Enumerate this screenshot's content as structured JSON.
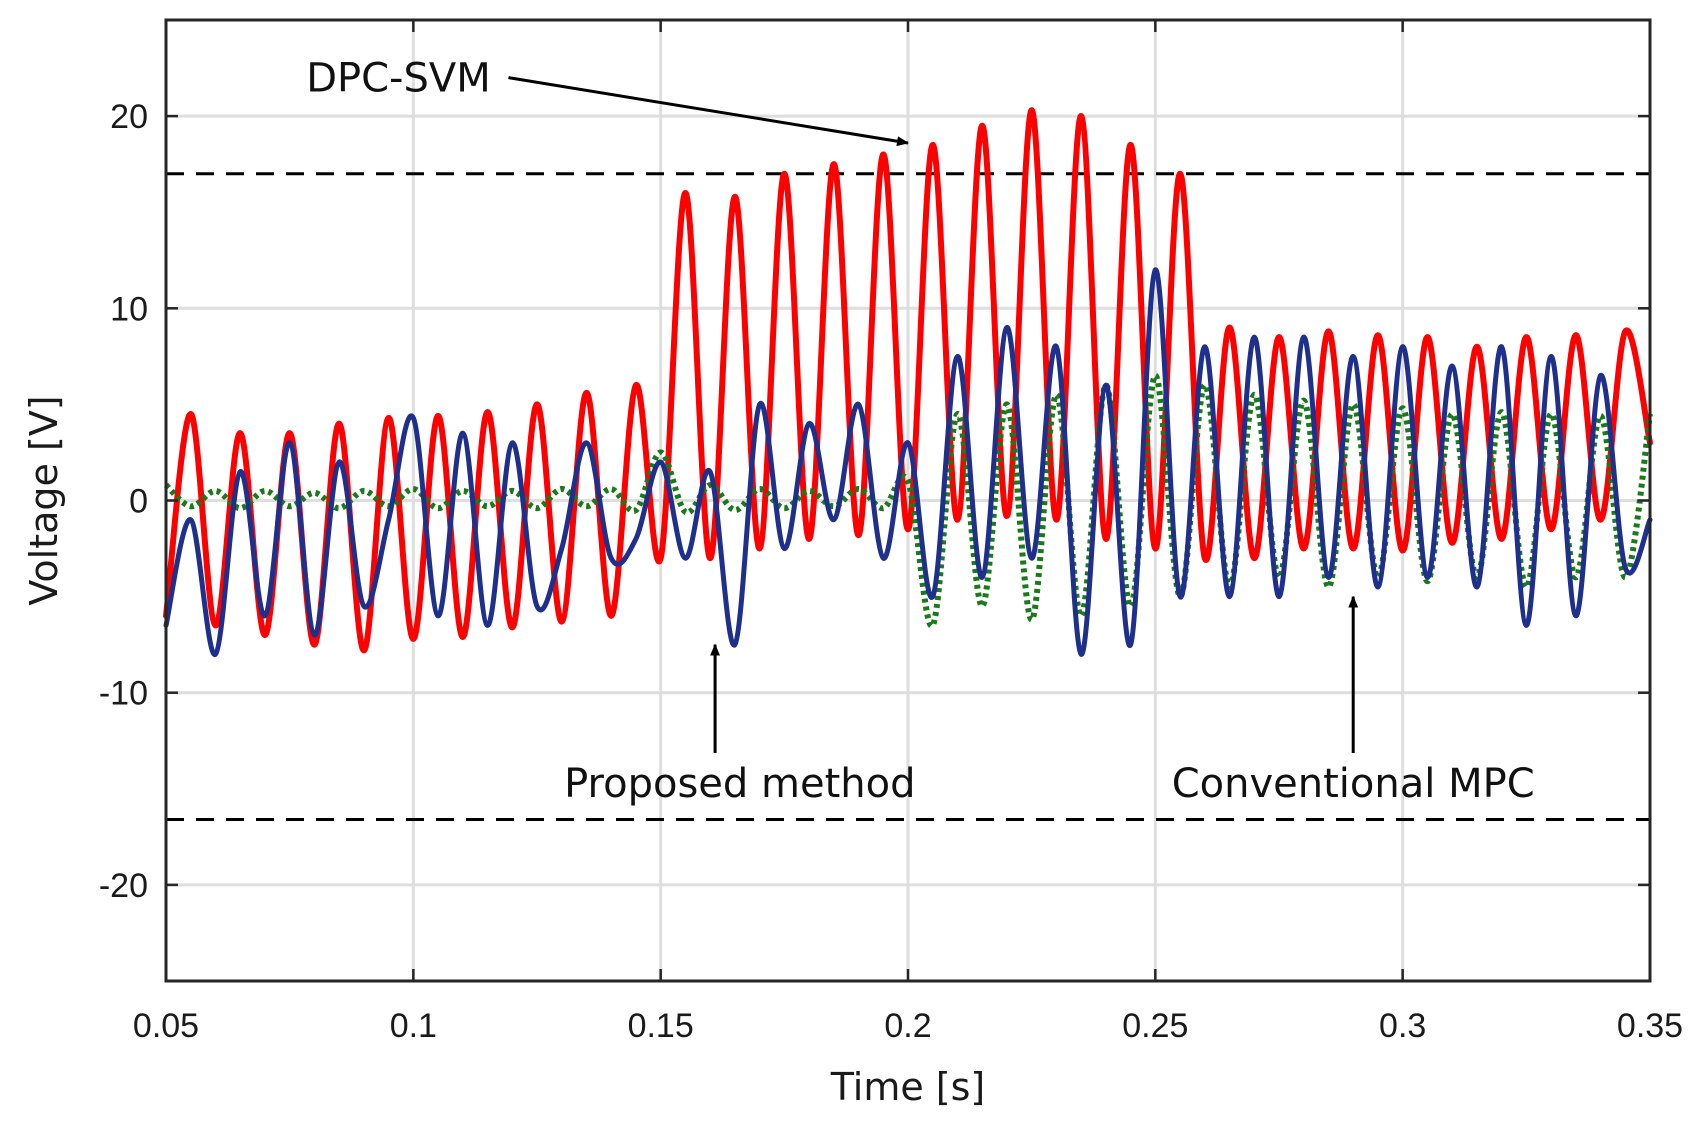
{
  "chart_data": {
    "type": "line",
    "xlabel": "Time [s]",
    "ylabel": "Voltage [V]",
    "xlim": [
      0.05,
      0.35
    ],
    "ylim": [
      -25,
      25
    ],
    "xticks": [
      0.05,
      0.1,
      0.15,
      0.2,
      0.25,
      0.3,
      0.35
    ],
    "xtick_labels": [
      "0.05",
      "0.1",
      "0.15",
      "0.2",
      "0.25",
      "0.3",
      "0.35"
    ],
    "yticks": [
      -20,
      -10,
      0,
      10,
      20
    ],
    "ytick_labels": [
      "-20",
      "-10",
      "0",
      "10",
      "20"
    ],
    "grid": true,
    "colors": {
      "dpc_svm": "#ff0000",
      "conventional_mpc": "#1a7a1a",
      "proposed": "#1f2f8c",
      "limit": "#000000"
    },
    "limits": [
      17,
      -16.6
    ],
    "series": [
      {
        "label": "DPC-SVM",
        "style": "solid",
        "x": [
          0.05,
          0.055,
          0.06,
          0.065,
          0.07,
          0.075,
          0.08,
          0.085,
          0.09,
          0.095,
          0.1,
          0.105,
          0.11,
          0.115,
          0.12,
          0.125,
          0.13,
          0.135,
          0.14,
          0.145,
          0.15,
          0.155,
          0.16,
          0.165,
          0.17,
          0.175,
          0.18,
          0.185,
          0.19,
          0.195,
          0.2,
          0.205,
          0.21,
          0.215,
          0.22,
          0.225,
          0.23,
          0.235,
          0.24,
          0.245,
          0.25,
          0.255,
          0.26,
          0.265,
          0.27,
          0.275,
          0.28,
          0.285,
          0.29,
          0.295,
          0.3,
          0.305,
          0.31,
          0.315,
          0.32,
          0.325,
          0.33,
          0.335,
          0.34,
          0.345,
          0.35
        ],
        "y": [
          -6,
          4.5,
          -6.5,
          3.5,
          -7,
          3.5,
          -7.5,
          4,
          -7.8,
          4.3,
          -7.2,
          4.4,
          -7.1,
          4.6,
          -6.6,
          5,
          -6.3,
          5.6,
          -6,
          6,
          -3,
          16,
          -3,
          15.8,
          -2.5,
          17,
          -2,
          17.5,
          -1.8,
          18,
          -1.5,
          18.5,
          -1,
          19.5,
          -0.8,
          20.3,
          -1,
          20,
          -2,
          18.5,
          -2.5,
          17,
          -3,
          9,
          -3,
          8.5,
          -2.5,
          8.8,
          -2.5,
          8.6,
          -2.6,
          8.5,
          -2.2,
          8,
          -2,
          8.5,
          -1.5,
          8.6,
          -1,
          8.8,
          3
        ]
      },
      {
        "label": "Conventional MPC",
        "style": "dotted",
        "x": [
          0.05,
          0.055,
          0.06,
          0.065,
          0.07,
          0.075,
          0.08,
          0.085,
          0.09,
          0.095,
          0.1,
          0.105,
          0.11,
          0.115,
          0.12,
          0.125,
          0.13,
          0.135,
          0.14,
          0.145,
          0.15,
          0.155,
          0.16,
          0.165,
          0.17,
          0.175,
          0.18,
          0.185,
          0.19,
          0.195,
          0.2,
          0.205,
          0.21,
          0.215,
          0.22,
          0.225,
          0.23,
          0.235,
          0.24,
          0.245,
          0.25,
          0.255,
          0.26,
          0.265,
          0.27,
          0.275,
          0.28,
          0.285,
          0.29,
          0.295,
          0.3,
          0.305,
          0.31,
          0.315,
          0.32,
          0.325,
          0.33,
          0.335,
          0.34,
          0.345,
          0.35
        ],
        "y": [
          0.8,
          -0.3,
          0.5,
          -0.4,
          0.5,
          -0.3,
          0.4,
          -0.4,
          0.5,
          -0.3,
          0.6,
          -0.4,
          0.5,
          -0.3,
          0.5,
          -0.4,
          0.6,
          -0.3,
          0.6,
          -0.5,
          2.5,
          -0.6,
          0.8,
          -0.5,
          0.6,
          -0.4,
          0.5,
          -0.3,
          0.6,
          -0.4,
          1,
          -6.5,
          4.5,
          -5.5,
          5,
          -6.2,
          5.5,
          -6,
          6,
          -5.5,
          6.5,
          -5,
          6,
          -4.5,
          5.5,
          -4,
          5.2,
          -4.5,
          5,
          -4,
          4.8,
          -4.2,
          4.5,
          -4,
          4.6,
          -4.5,
          4.5,
          -4,
          4.4,
          -4,
          4.5
        ]
      },
      {
        "label": "Proposed method",
        "style": "solid",
        "x": [
          0.05,
          0.055,
          0.06,
          0.065,
          0.07,
          0.075,
          0.08,
          0.085,
          0.09,
          0.095,
          0.1,
          0.105,
          0.11,
          0.115,
          0.12,
          0.125,
          0.13,
          0.135,
          0.14,
          0.145,
          0.15,
          0.155,
          0.16,
          0.165,
          0.17,
          0.175,
          0.18,
          0.185,
          0.19,
          0.195,
          0.2,
          0.205,
          0.21,
          0.215,
          0.22,
          0.225,
          0.23,
          0.235,
          0.24,
          0.245,
          0.25,
          0.255,
          0.26,
          0.265,
          0.27,
          0.275,
          0.28,
          0.285,
          0.29,
          0.295,
          0.3,
          0.305,
          0.31,
          0.315,
          0.32,
          0.325,
          0.33,
          0.335,
          0.34,
          0.345,
          0.35
        ],
        "y": [
          -6.5,
          -1,
          -8,
          1.5,
          -6,
          3,
          -7,
          2,
          -5.5,
          -1,
          4.3,
          -6,
          3.5,
          -6.5,
          3,
          -5.5,
          -2.5,
          3,
          -3,
          -2,
          2,
          -3,
          1.5,
          -7.5,
          5,
          -2.5,
          4,
          -1,
          5,
          -3,
          3,
          -5,
          7.5,
          -4,
          9,
          -3,
          8,
          -8,
          6,
          -7.5,
          12,
          -5,
          8,
          -5,
          8.5,
          -5,
          8.5,
          -4,
          7.5,
          -4.5,
          8,
          -4,
          7,
          -4.5,
          8,
          -6.5,
          7.5,
          -6,
          6.5,
          -3.5,
          -1
        ]
      }
    ],
    "annotations": [
      {
        "text": "DPC-SVM",
        "text_at": [
          0.097,
          22
        ],
        "arrow_to": [
          0.2,
          18.6
        ]
      },
      {
        "text": "Proposed method",
        "text_at": [
          0.166,
          -14.7
        ],
        "arrow_to": [
          0.161,
          -7.5
        ]
      },
      {
        "text": "Conventional MPC",
        "text_at": [
          0.29,
          -14.7
        ],
        "arrow_to": [
          0.29,
          -5
        ]
      }
    ]
  }
}
